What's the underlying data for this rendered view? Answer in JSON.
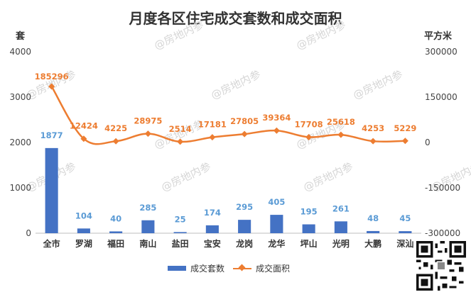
{
  "chart_data": {
    "type": "bar+line",
    "title": "月度各区住宅成交套数和成交面积",
    "y_left_unit": "套",
    "y_right_unit": "平方米",
    "categories": [
      "全市",
      "罗湖",
      "福田",
      "南山",
      "盐田",
      "宝安",
      "龙岗",
      "龙华",
      "坪山",
      "光明",
      "大鹏",
      "深汕"
    ],
    "series": [
      {
        "name": "成交套数",
        "type": "bar",
        "axis": "left",
        "color": "#4472c4",
        "label_color": "#5b9bd5",
        "values": [
          1877,
          104,
          40,
          285,
          25,
          174,
          295,
          405,
          195,
          261,
          48,
          45
        ]
      },
      {
        "name": "成交面积",
        "type": "line",
        "axis": "right",
        "color": "#ed7d31",
        "values": [
          185296,
          12424,
          4225,
          28975,
          2514,
          17181,
          27805,
          39364,
          17708,
          25618,
          4253,
          5229
        ]
      }
    ],
    "y_left": {
      "min": 0,
      "max": 4000,
      "ticks": [
        0,
        1000,
        2000,
        3000,
        4000
      ]
    },
    "y_right": {
      "min": -300000,
      "max": 300000,
      "ticks": [
        300000,
        150000,
        0,
        -150000,
        -300000
      ]
    },
    "legend_position": "bottom",
    "grid": false
  },
  "watermark": "@房地内参"
}
